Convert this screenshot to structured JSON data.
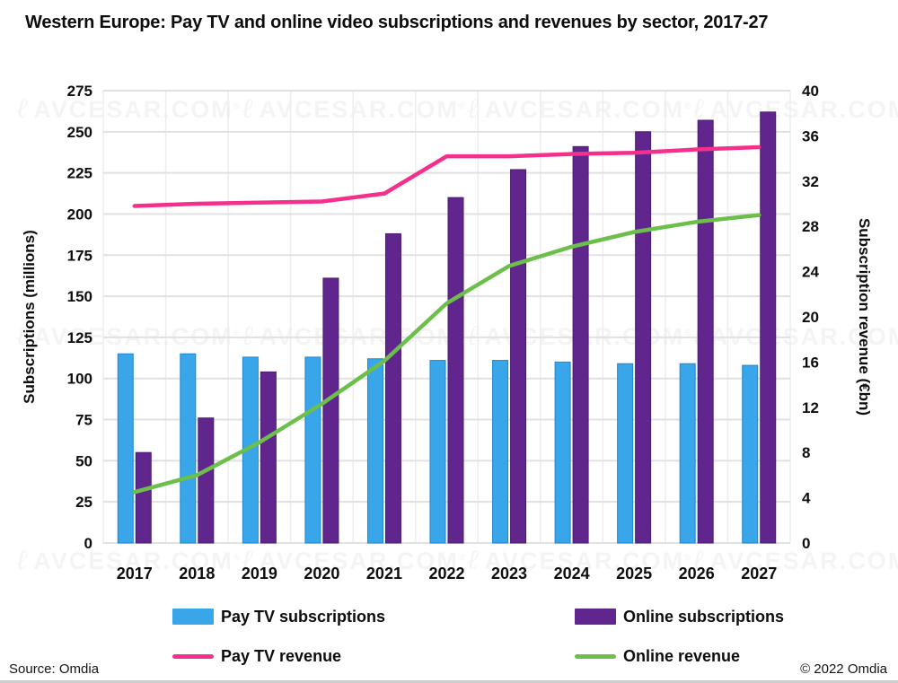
{
  "title": "Western Europe: Pay TV and online video subscriptions and revenues by sector, 2017-27",
  "watermark": {
    "text": "AVCESAR.COM",
    "monogram": "ℓ"
  },
  "footer": {
    "source": "Source: Omdia",
    "copyright": "© 2022 Omdia"
  },
  "legend": [
    {
      "label": "Pay TV subscriptions",
      "type": "bar",
      "color": "#38a6e8"
    },
    {
      "label": "Online subscriptions",
      "type": "bar",
      "color": "#61268e"
    },
    {
      "label": "Pay TV revenue",
      "type": "line",
      "color": "#f5308c"
    },
    {
      "label": "Online revenue",
      "type": "line",
      "color": "#6cbf4b"
    }
  ],
  "chart_data": {
    "type": "combo-bar-line",
    "title": "Western Europe: Pay TV and online video subscriptions and revenues by sector, 2017-27",
    "categories": [
      "2017",
      "2018",
      "2019",
      "2020",
      "2021",
      "2022",
      "2023",
      "2024",
      "2025",
      "2026",
      "2027"
    ],
    "left_axis": {
      "label": "Subscriptions (millions)",
      "range": [
        0,
        275
      ],
      "ticks": [
        0,
        25,
        50,
        75,
        100,
        125,
        150,
        175,
        200,
        225,
        250,
        275
      ]
    },
    "right_axis": {
      "label": "Subscription revenue (€bn)",
      "range": [
        0,
        40
      ],
      "ticks": [
        0,
        4,
        8,
        12,
        16,
        20,
        24,
        28,
        32,
        36,
        40
      ]
    },
    "grid": true,
    "legend_position": "bottom",
    "series": [
      {
        "name": "Pay TV subscriptions",
        "type": "bar",
        "axis": "left",
        "color": "#38a6e8",
        "edge": "#1f86cf",
        "values": [
          115,
          115,
          113,
          113,
          112,
          111,
          111,
          110,
          109,
          109,
          108
        ]
      },
      {
        "name": "Online subscriptions",
        "type": "bar",
        "axis": "left",
        "color": "#61268e",
        "edge": "#491d6b",
        "values": [
          55,
          76,
          104,
          161,
          188,
          210,
          227,
          241,
          250,
          257,
          262
        ]
      },
      {
        "name": "Pay TV revenue",
        "type": "line",
        "axis": "right",
        "color": "#f5308c",
        "values": [
          29.8,
          30.0,
          30.1,
          30.2,
          30.9,
          34.2,
          34.2,
          34.4,
          34.5,
          34.8,
          35.0
        ]
      },
      {
        "name": "Online revenue",
        "type": "line",
        "axis": "right",
        "color": "#6cbf4b",
        "values": [
          4.5,
          6.0,
          8.9,
          12.3,
          16.1,
          21.2,
          24.5,
          26.2,
          27.5,
          28.4,
          29.0
        ]
      }
    ]
  }
}
